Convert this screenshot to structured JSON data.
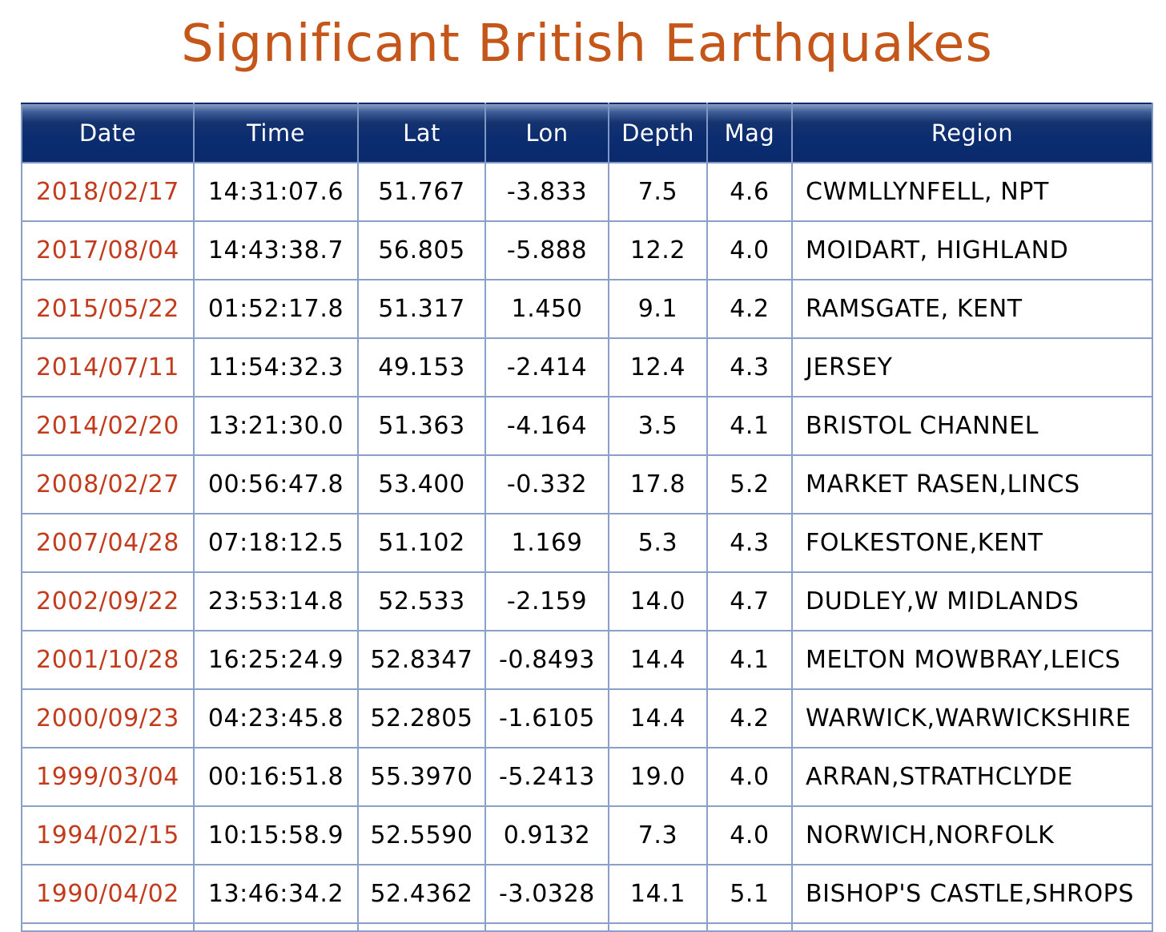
{
  "title": "Significant British Earthquakes",
  "colors": {
    "title": "#c5561a",
    "header_bg": "#0a2a6c",
    "date_text": "#c23b1c",
    "grid": "#8aa0c8"
  },
  "table": {
    "columns": [
      "Date",
      "Time",
      "Lat",
      "Lon",
      "Depth",
      "Mag",
      "Region"
    ],
    "rows": [
      [
        "2018/02/17",
        "14:31:07.6",
        "51.767",
        "-3.833",
        "7.5",
        "4.6",
        "CWMLLYNFELL, NPT"
      ],
      [
        "2017/08/04",
        "14:43:38.7",
        "56.805",
        "-5.888",
        "12.2",
        "4.0",
        "MOIDART, HIGHLAND"
      ],
      [
        "2015/05/22",
        "01:52:17.8",
        "51.317",
        "1.450",
        "9.1",
        "4.2",
        "RAMSGATE, KENT"
      ],
      [
        "2014/07/11",
        "11:54:32.3",
        "49.153",
        "-2.414",
        "12.4",
        "4.3",
        "JERSEY"
      ],
      [
        "2014/02/20",
        "13:21:30.0",
        "51.363",
        "-4.164",
        "3.5",
        "4.1",
        "BRISTOL CHANNEL"
      ],
      [
        "2008/02/27",
        "00:56:47.8",
        "53.400",
        "-0.332",
        "17.8",
        "5.2",
        "MARKET RASEN,LINCS"
      ],
      [
        "2007/04/28",
        "07:18:12.5",
        "51.102",
        "1.169",
        "5.3",
        "4.3",
        "FOLKESTONE,KENT"
      ],
      [
        "2002/09/22",
        "23:53:14.8",
        "52.533",
        "-2.159",
        "14.0",
        "4.7",
        "DUDLEY,W MIDLANDS"
      ],
      [
        "2001/10/28",
        "16:25:24.9",
        "52.8347",
        "-0.8493",
        "14.4",
        "4.1",
        "MELTON MOWBRAY,LEICS"
      ],
      [
        "2000/09/23",
        "04:23:45.8",
        "52.2805",
        "-1.6105",
        "14.4",
        "4.2",
        "WARWICK,WARWICKSHIRE"
      ],
      [
        "1999/03/04",
        "00:16:51.8",
        "55.3970",
        "-5.2413",
        "19.0",
        "4.0",
        "ARRAN,STRATHCLYDE"
      ],
      [
        "1994/02/15",
        "10:15:58.9",
        "52.5590",
        "0.9132",
        "7.3",
        "4.0",
        "NORWICH,NORFOLK"
      ],
      [
        "1990/04/02",
        "13:46:34.2",
        "52.4362",
        "-3.0328",
        "14.1",
        "5.1",
        "BISHOP'S CASTLE,SHROPS"
      ]
    ]
  }
}
